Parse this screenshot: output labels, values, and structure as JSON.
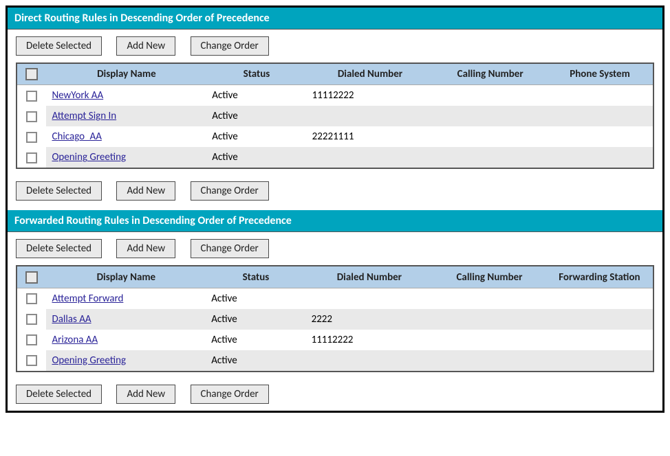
{
  "colors": {
    "header_bg": "#00a4be",
    "header_text": "#ffffff",
    "th_bg": "#b3cfe8",
    "row_alt_bg": "#e9e9e9",
    "link_color": "#2a2398",
    "button_bg": "#eaeaea",
    "button_border": "#4a4a4a",
    "frame_border": "#000000"
  },
  "buttons": {
    "delete_selected": "Delete Selected",
    "add_new": "Add New",
    "change_order": "Change Order"
  },
  "direct": {
    "title": "Direct Routing Rules in Descending Order of Precedence",
    "columns": {
      "display_name": "Display Name",
      "status": "Status",
      "dialed_number": "Dialed Number",
      "calling_number": "Calling Number",
      "phone_system": "Phone System"
    },
    "rows": [
      {
        "display_name": "NewYork AA",
        "status": "Active",
        "dialed_number": "11112222",
        "calling_number": "",
        "phone_system": ""
      },
      {
        "display_name": "Attempt Sign In",
        "status": "Active",
        "dialed_number": "",
        "calling_number": "",
        "phone_system": ""
      },
      {
        "display_name": "Chicago_AA",
        "status": "Active",
        "dialed_number": "22221111",
        "calling_number": "",
        "phone_system": ""
      },
      {
        "display_name": "Opening Greeting",
        "status": "Active",
        "dialed_number": "",
        "calling_number": "",
        "phone_system": ""
      }
    ]
  },
  "forwarded": {
    "title": "Forwarded Routing Rules in Descending Order of Precedence",
    "columns": {
      "display_name": "Display Name",
      "status": "Status",
      "dialed_number": "Dialed Number",
      "calling_number": "Calling Number",
      "forwarding_station": "Forwarding Station"
    },
    "rows": [
      {
        "display_name": "Attempt Forward",
        "status": "Active",
        "dialed_number": "",
        "calling_number": "",
        "forwarding_station": ""
      },
      {
        "display_name": "Dallas AA",
        "status": "Active",
        "dialed_number": "2222",
        "calling_number": "",
        "forwarding_station": ""
      },
      {
        "display_name": "Arizona AA",
        "status": "Active",
        "dialed_number": "11112222",
        "calling_number": "",
        "forwarding_station": ""
      },
      {
        "display_name": "Opening Greeting",
        "status": "Active",
        "dialed_number": "",
        "calling_number": "",
        "forwarding_station": ""
      }
    ]
  }
}
